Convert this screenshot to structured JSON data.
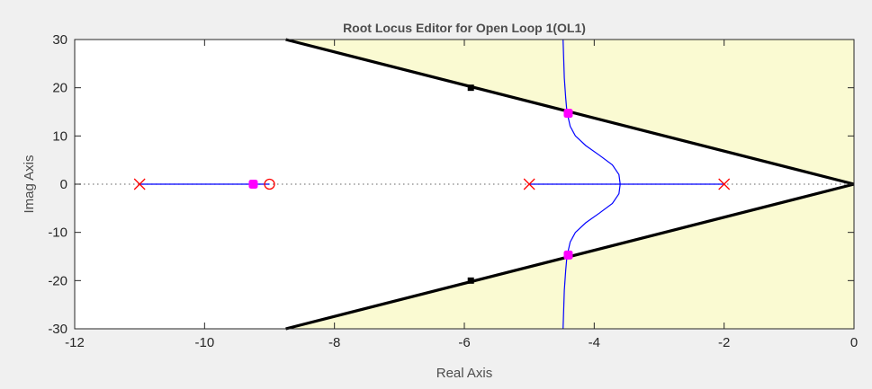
{
  "chart_data": {
    "type": "line",
    "title": "Root Locus Editor for Open Loop 1(OL1)",
    "xlabel": "Real Axis",
    "ylabel": "Imag Axis",
    "xlim": [
      -12,
      0
    ],
    "ylim": [
      -30,
      30
    ],
    "xticks": [
      -12,
      -10,
      -8,
      -6,
      -4,
      -2,
      0
    ],
    "yticks": [
      -30,
      -20,
      -10,
      0,
      10,
      20,
      30
    ],
    "grid": false,
    "colors": {
      "plot_bg": "#ffffff",
      "region_fill": "#fafad2",
      "locus": "#0000ff",
      "pole_marker": "#ff0000",
      "zero_marker": "#ff0000",
      "closed_loop_pole": "#ff00ff",
      "constraint_line": "#000000"
    },
    "open_loop_poles": [
      {
        "x": -11,
        "y": 0
      },
      {
        "x": -5,
        "y": 0
      },
      {
        "x": -2,
        "y": 0
      }
    ],
    "open_loop_zeros": [
      {
        "x": -9,
        "y": 0
      }
    ],
    "closed_loop_poles": [
      {
        "x": -9.25,
        "y": 0
      },
      {
        "x": -4.4,
        "y": 14.7
      },
      {
        "x": -4.4,
        "y": -14.7
      }
    ],
    "constraint_lines": [
      {
        "points": [
          [
            0,
            0
          ],
          [
            -8.75,
            30
          ]
        ]
      },
      {
        "points": [
          [
            0,
            0
          ],
          [
            -8.75,
            -30
          ]
        ]
      }
    ],
    "constraint_handles": [
      {
        "x": -5.9,
        "y": 20
      },
      {
        "x": -5.9,
        "y": -20
      }
    ],
    "locus_branches": [
      {
        "points": [
          [
            -11,
            0
          ],
          [
            -9,
            0
          ]
        ]
      },
      {
        "points": [
          [
            -5,
            0
          ],
          [
            -2,
            0
          ]
        ]
      },
      {
        "points": [
          [
            -3.6,
            0
          ],
          [
            -3.62,
            2
          ],
          [
            -3.72,
            4
          ],
          [
            -3.92,
            6
          ],
          [
            -4.13,
            8
          ],
          [
            -4.29,
            10
          ],
          [
            -4.37,
            12
          ],
          [
            -4.42,
            15
          ],
          [
            -4.44,
            18
          ],
          [
            -4.46,
            22
          ],
          [
            -4.47,
            26
          ],
          [
            -4.48,
            30
          ]
        ]
      },
      {
        "points": [
          [
            -3.6,
            0
          ],
          [
            -3.62,
            -2
          ],
          [
            -3.72,
            -4
          ],
          [
            -3.92,
            -6
          ],
          [
            -4.13,
            -8
          ],
          [
            -4.29,
            -10
          ],
          [
            -4.37,
            -12
          ],
          [
            -4.42,
            -15
          ],
          [
            -4.44,
            -18
          ],
          [
            -4.46,
            -22
          ],
          [
            -4.47,
            -26
          ],
          [
            -4.48,
            -30
          ]
        ]
      }
    ]
  }
}
